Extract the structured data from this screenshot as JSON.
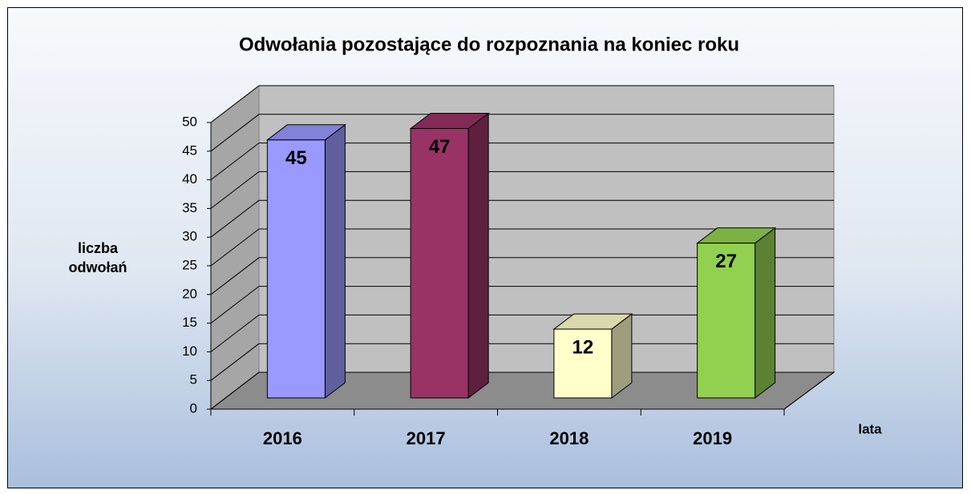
{
  "chart_data": {
    "type": "bar3d",
    "title": "Odwołania pozostające do rozpoznania na koniec roku",
    "y_label": "liczba odwołań",
    "x_label": "lata",
    "categories": [
      "2016",
      "2017",
      "2018",
      "2019"
    ],
    "values": [
      45,
      47,
      12,
      27
    ],
    "colors": [
      "#9999ff",
      "#993366",
      "#ffffcc",
      "#92d050"
    ],
    "ylim": [
      0,
      50
    ],
    "yticks": [
      0,
      5,
      10,
      15,
      20,
      25,
      30,
      35,
      40,
      45,
      50
    ],
    "grid": true
  }
}
